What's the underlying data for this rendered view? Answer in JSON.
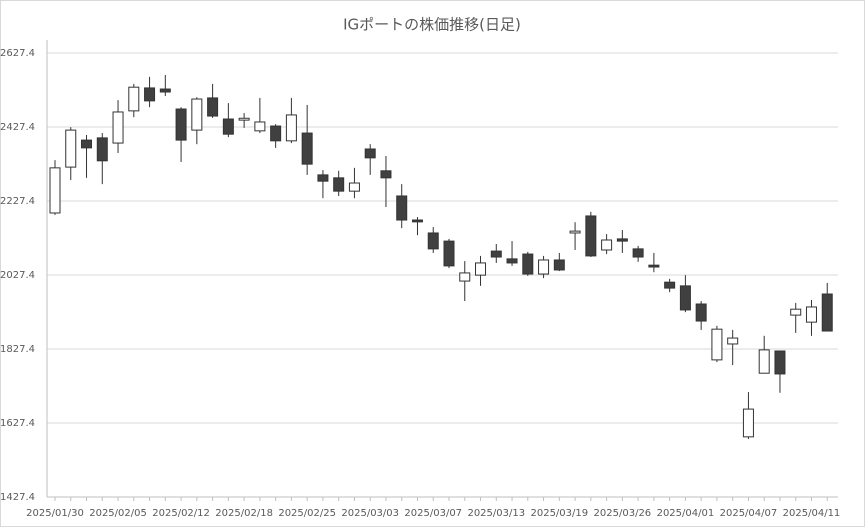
{
  "chart_data": {
    "type": "candlestick",
    "title": "IGポートの株価推移(日足)",
    "categories": [
      "2025/01/30",
      null,
      null,
      null,
      "2025/02/05",
      null,
      null,
      null,
      "2025/02/12",
      null,
      null,
      null,
      "2025/02/18",
      null,
      null,
      null,
      "2025/02/25",
      null,
      null,
      null,
      "2025/03/03",
      null,
      null,
      null,
      "2025/03/07",
      null,
      null,
      null,
      "2025/03/13",
      null,
      null,
      null,
      "2025/03/19",
      null,
      null,
      null,
      "2025/03/26",
      null,
      null,
      null,
      "2025/04/01",
      null,
      null,
      null,
      "2025/04/07",
      null,
      null,
      null,
      "2025/04/11",
      null
    ],
    "open": [
      2195,
      2319,
      2392,
      2398,
      2384,
      2471,
      2533,
      2530,
      2476,
      2419,
      2506,
      2449,
      2446,
      2417,
      2430,
      2390,
      2411,
      2298,
      2290,
      2254,
      2368,
      2309,
      2241,
      2176,
      2141,
      2119,
      2011,
      2027,
      2092,
      2071,
      2084,
      2030,
      2068,
      2141,
      2187,
      2095,
      2125,
      2098,
      2054,
      2008,
      1998,
      1949,
      1798,
      1841,
      1590,
      1762,
      1822,
      1919,
      1900,
      1976
    ],
    "high": [
      2338,
      2427,
      2406,
      2411,
      2500,
      2544,
      2563,
      2568,
      2481,
      2508,
      2544,
      2492,
      2465,
      2506,
      2435,
      2506,
      2487,
      2311,
      2309,
      2317,
      2381,
      2349,
      2273,
      2184,
      2157,
      2125,
      2065,
      2079,
      2111,
      2119,
      2090,
      2079,
      2087,
      2170,
      2198,
      2138,
      2149,
      2106,
      2087,
      2017,
      2027,
      1957,
      1890,
      1879,
      1711,
      1863,
      1822,
      1952,
      1960,
      2006
    ],
    "low": [
      2190,
      2284,
      2290,
      2273,
      2357,
      2454,
      2481,
      2511,
      2333,
      2381,
      2452,
      2400,
      2425,
      2411,
      2371,
      2384,
      2298,
      2235,
      2241,
      2235,
      2298,
      2211,
      2154,
      2135,
      2087,
      2046,
      1957,
      1998,
      2060,
      2052,
      2025,
      2019,
      2038,
      2095,
      2076,
      2084,
      2087,
      2063,
      2035,
      1981,
      1927,
      1879,
      1792,
      1784,
      1584,
      1762,
      1709,
      1871,
      1863,
      1876
    ],
    "close": [
      2317,
      2419,
      2371,
      2336,
      2468,
      2535,
      2498,
      2522,
      2392,
      2503,
      2457,
      2408,
      2451,
      2441,
      2390,
      2460,
      2327,
      2281,
      2254,
      2276,
      2344,
      2290,
      2176,
      2171,
      2098,
      2052,
      2033,
      2060,
      2076,
      2060,
      2030,
      2068,
      2041,
      2146,
      2079,
      2122,
      2119,
      2076,
      2049,
      1992,
      1933,
      1903,
      1881,
      1857,
      1665,
      1825,
      1760,
      1935,
      1941,
      1876
    ],
    "up_color": "#ffffff",
    "down_color": "#404040",
    "edge_color": "#333333",
    "ylim": [
      1427.4,
      2627.4
    ],
    "yticks": [
      1427.4,
      1627.4,
      1827.4,
      2027.4,
      2227.4,
      2427.4,
      2627.4
    ],
    "grid": true
  }
}
